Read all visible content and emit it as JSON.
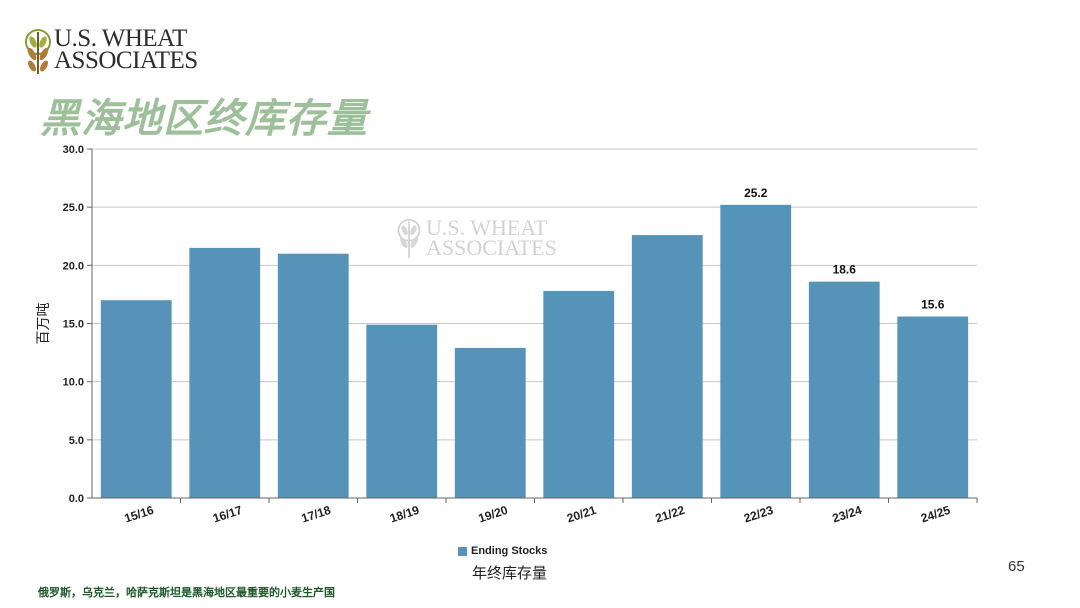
{
  "logo": {
    "line1": "U.S. WHEAT",
    "line2": "ASSOCIATES"
  },
  "watermark": {
    "line1": "U.S. WHEAT",
    "line2": "ASSOCIATES"
  },
  "slide_title": "黑海地区终库存量",
  "page_number": "65",
  "footnote": "俄罗斯，乌克兰，哈萨克斯坦是黑海地区最重要的小麦生产国",
  "legend": {
    "series_label": "Ending Stocks",
    "cn_label": "年终库存量"
  },
  "colors": {
    "bar": "#5593b9",
    "title": "#9dc09b",
    "footnote": "#1e5a2a"
  },
  "chart_data": {
    "type": "bar",
    "categories": [
      "15/16",
      "16/17",
      "17/18",
      "18/19",
      "19/20",
      "20/21",
      "21/22",
      "22/23",
      "23/24",
      "24/25"
    ],
    "series": [
      {
        "name": "Ending Stocks",
        "values": [
          17.0,
          21.5,
          21.0,
          14.9,
          12.9,
          17.8,
          22.6,
          25.2,
          18.6,
          15.6
        ]
      }
    ],
    "data_labels": [
      null,
      null,
      null,
      null,
      null,
      null,
      null,
      "25.2",
      "18.6",
      "15.6"
    ],
    "ylabel": "百万吨",
    "ylim": [
      0,
      30
    ],
    "yticks": [
      "0.0",
      "5.0",
      "10.0",
      "15.0",
      "20.0",
      "25.0",
      "30.0"
    ],
    "grid": true,
    "legend_position": "bottom"
  }
}
